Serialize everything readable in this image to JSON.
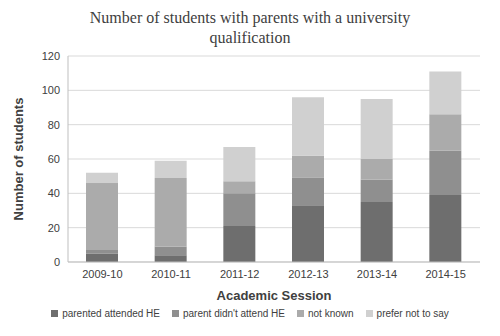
{
  "chart_data": {
    "type": "bar",
    "title": "Number of students with parents with a university qualification",
    "x_label": "Academic Session",
    "y_label": "Number of students",
    "categories": [
      "2009-10",
      "2010-11",
      "2011-12",
      "2012-13",
      "2013-14",
      "2014-15"
    ],
    "series": [
      {
        "name": "parented attended HE",
        "color": "#6e6e6e",
        "values": [
          5,
          4,
          21,
          33,
          35,
          39
        ]
      },
      {
        "name": "parent didn't attend HE",
        "color": "#8f8f8f",
        "values": [
          2,
          5,
          19,
          16,
          13,
          26
        ]
      },
      {
        "name": "not known",
        "color": "#ababab",
        "values": [
          39,
          40,
          7,
          13,
          12,
          21
        ]
      },
      {
        "name": "prefer not to say",
        "color": "#d0d0d0",
        "values": [
          6,
          10,
          20,
          34,
          35,
          25
        ]
      }
    ],
    "stacked": true,
    "ylim": [
      0,
      120
    ],
    "yticks": [
      0,
      20,
      40,
      60,
      80,
      100,
      120
    ],
    "grid": true,
    "legend": "bottom"
  }
}
